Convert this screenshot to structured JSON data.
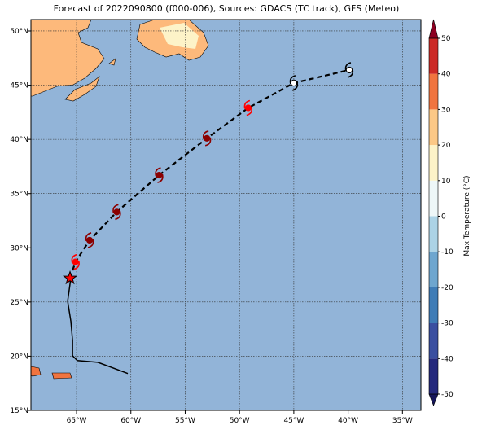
{
  "title": "Forecast of 2022090800 (f000-006), Sources: GDACS (TC track), GFS (Meteo)",
  "map": {
    "lon_range": [
      -69.2,
      -33.3
    ],
    "lat_range": [
      15,
      51.05
    ],
    "ocean_color": "#92b4d8",
    "lon_ticks": [
      {
        "value": -65,
        "label": "65°W"
      },
      {
        "value": -60,
        "label": "60°W"
      },
      {
        "value": -55,
        "label": "55°W"
      },
      {
        "value": -50,
        "label": "50°W"
      },
      {
        "value": -45,
        "label": "45°W"
      },
      {
        "value": -40,
        "label": "40°W"
      },
      {
        "value": -35,
        "label": "35°W"
      }
    ],
    "lat_ticks": [
      {
        "value": 15,
        "label": "15°N"
      },
      {
        "value": 20,
        "label": "20°N"
      },
      {
        "value": 25,
        "label": "25°N"
      },
      {
        "value": 30,
        "label": "30°N"
      },
      {
        "value": 35,
        "label": "35°N"
      },
      {
        "value": 40,
        "label": "40°N"
      },
      {
        "value": 45,
        "label": "45°N"
      },
      {
        "value": 50,
        "label": "50°N"
      }
    ]
  },
  "past_track": [
    {
      "lon": -65.52,
      "lat": 27.25
    },
    {
      "lon": -65.82,
      "lat": 25.07
    },
    {
      "lon": -65.52,
      "lat": 23.2
    },
    {
      "lon": -65.37,
      "lat": 21.47
    },
    {
      "lon": -65.37,
      "lat": 20.05
    },
    {
      "lon": -64.93,
      "lat": 19.6
    },
    {
      "lon": -63.05,
      "lat": 19.44
    },
    {
      "lon": -60.28,
      "lat": 18.4
    }
  ],
  "forecast_track": [
    {
      "lon": -65.6,
      "lat": 27.2,
      "color": "#ff0000"
    },
    {
      "lon": -65.1,
      "lat": 28.7,
      "color": "#ff0000"
    },
    {
      "lon": -63.8,
      "lat": 30.7,
      "color": "#8b0000"
    },
    {
      "lon": -61.3,
      "lat": 33.3,
      "color": "#8b0000"
    },
    {
      "lon": -57.4,
      "lat": 36.7,
      "color": "#8b0000"
    },
    {
      "lon": -53.0,
      "lat": 40.1,
      "color": "#8b0000"
    },
    {
      "lon": -49.2,
      "lat": 42.9,
      "color": "#ff0000"
    },
    {
      "lon": -45.0,
      "lat": 45.2,
      "color": "#ffffff"
    },
    {
      "lon": -39.9,
      "lat": 46.4,
      "color": "#ffffff"
    }
  ],
  "colorbar": {
    "label": "Max Temperature (°C)",
    "ticks": [
      -50,
      -40,
      -30,
      -20,
      -10,
      0,
      10,
      20,
      30,
      40,
      50
    ],
    "colors": [
      "#24287c",
      "#3a4fa0",
      "#3f7cb6",
      "#6ea6cf",
      "#acd3e6",
      "#eef7f8",
      "#fdf3c8",
      "#fcc886",
      "#f0743f",
      "#cc2a26"
    ],
    "under_color": "#15155a",
    "over_color": "#8c0021"
  }
}
